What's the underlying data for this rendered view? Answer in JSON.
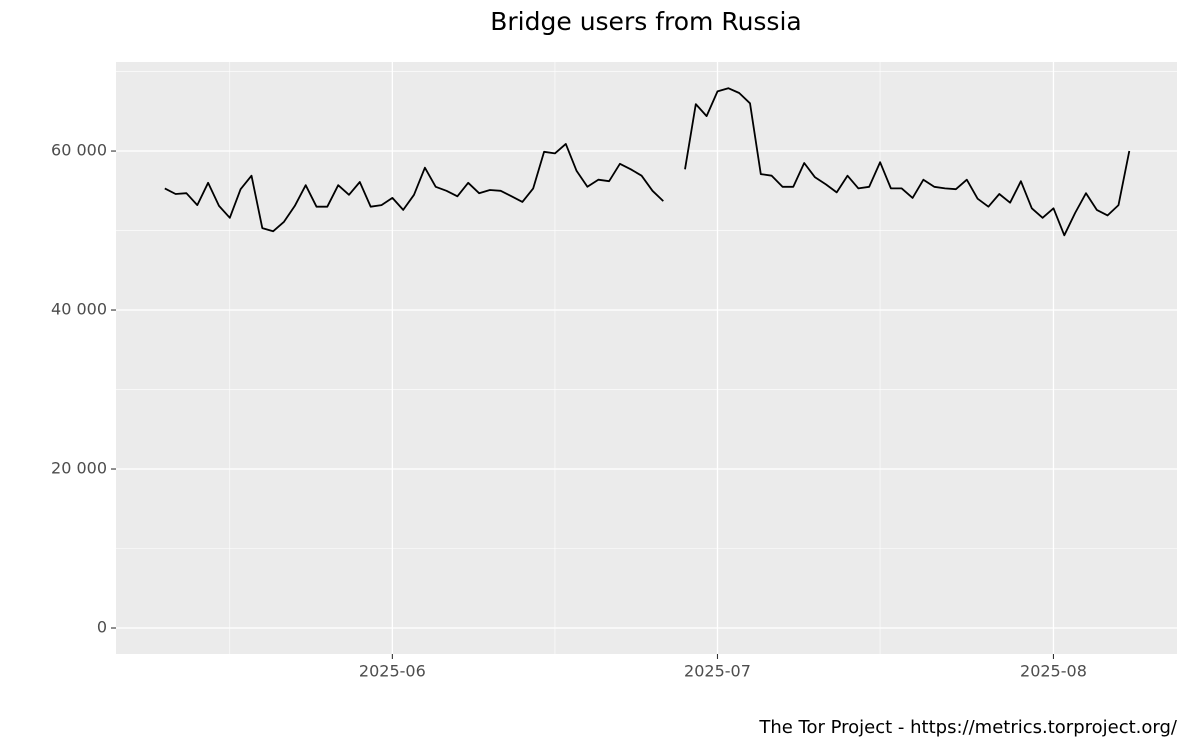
{
  "chart_data": {
    "type": "line",
    "title": "Bridge users from Russia",
    "caption": "The Tor Project - https://metrics.torproject.org/",
    "color": "#000000",
    "grid": true,
    "values": [
      55300,
      54600,
      54700,
      53200,
      56000,
      53100,
      51600,
      55200,
      56900,
      50300,
      49900,
      51100,
      53100,
      55700,
      53000,
      53000,
      55700,
      54500,
      56100,
      53000,
      53200,
      54100,
      52600,
      54500,
      57900,
      55500,
      55000,
      54300,
      56000,
      54700,
      55100,
      55000,
      54300,
      53600,
      55300,
      59900,
      59700,
      60900,
      57500,
      55500,
      56400,
      56200,
      58400,
      57700,
      56900,
      55000,
      53700,
      null,
      57700,
      65900,
      64400,
      67500,
      67900,
      67300,
      66000,
      57100,
      56900,
      55500,
      55500,
      58500,
      56700,
      55800,
      54800,
      56900,
      55300,
      55500,
      58600,
      55300,
      55300,
      54100,
      56400,
      55500,
      55300,
      55200,
      56400,
      54000,
      53000,
      54600,
      53500,
      56200,
      52800,
      51600,
      52800,
      49400,
      52200,
      54700,
      52600,
      51900,
      53200,
      60000
    ],
    "xlim": [
      -4.5,
      93.4
    ],
    "xticks": [
      {
        "value": 21,
        "label": "2025-06"
      },
      {
        "value": 51,
        "label": "2025-07"
      },
      {
        "value": 82,
        "label": "2025-08"
      }
    ],
    "ylim": [
      -3270,
      71200
    ],
    "yticks": [
      0,
      {
        "value": 20000,
        "label": "20 000"
      },
      {
        "value": 40000,
        "label": "40 000"
      },
      {
        "value": 60000,
        "label": "60 000"
      }
    ]
  }
}
